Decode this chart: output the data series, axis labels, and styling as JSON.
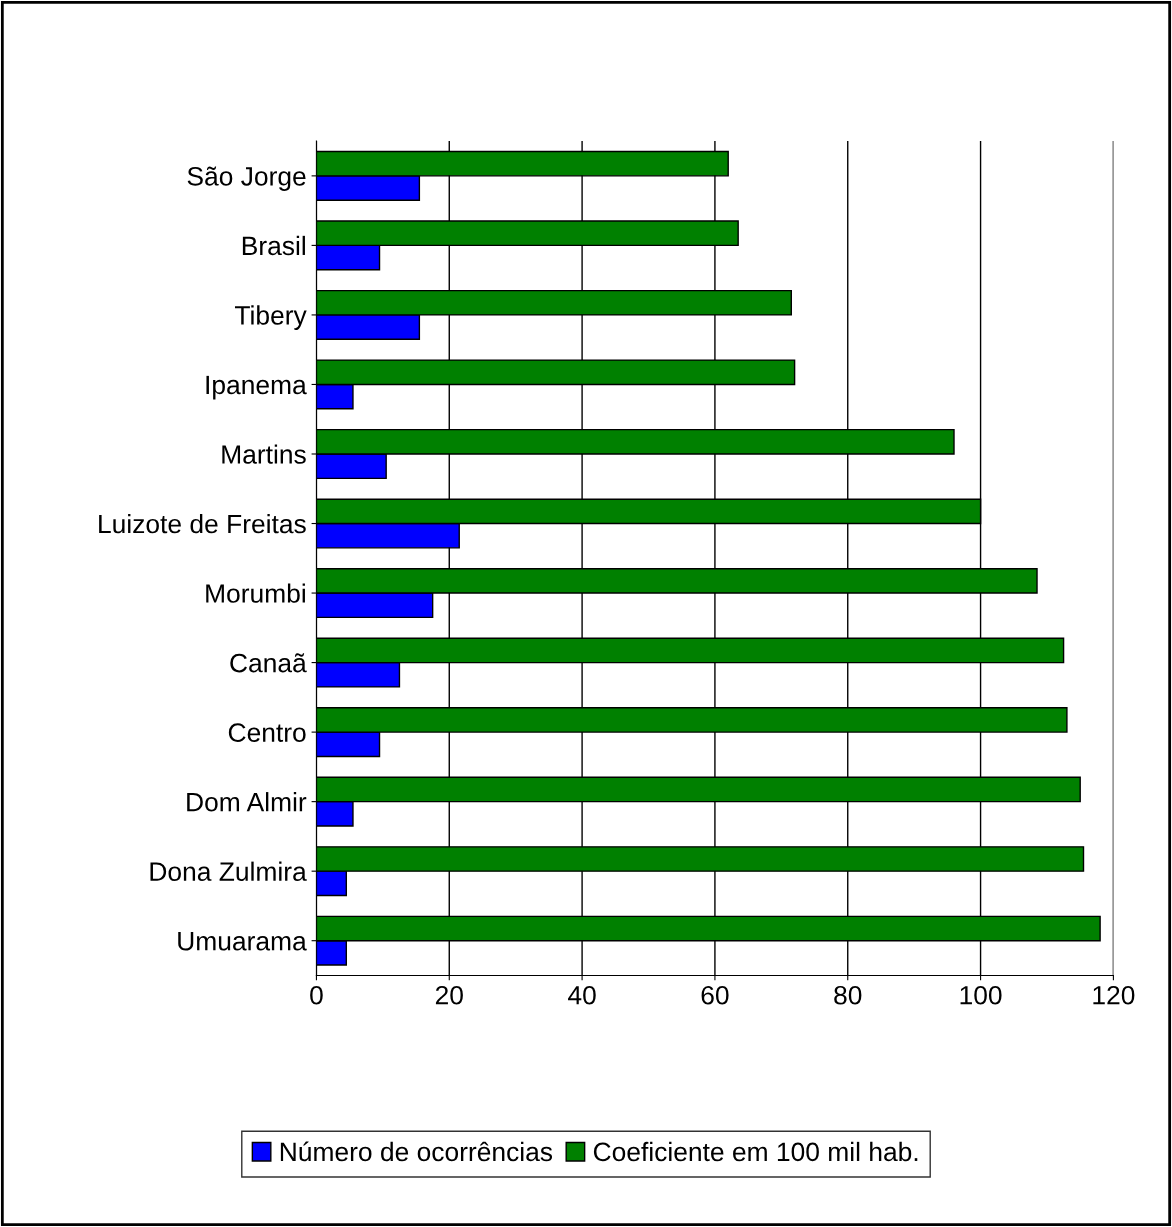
{
  "chart_data": {
    "type": "bar",
    "orientation": "horizontal",
    "categories": [
      "São Jorge",
      "Brasil",
      "Tibery",
      "Ipanema",
      "Martins",
      "Luizote de Freitas",
      "Morumbi",
      "Canaã",
      "Centro",
      "Dom Almir",
      "Dona Zulmira",
      "Umuarama"
    ],
    "series": [
      {
        "name": "Número de ocorrências",
        "color": "#0000ff",
        "values": [
          15.5,
          9.5,
          15.5,
          5.5,
          10.5,
          21.5,
          17.5,
          12.5,
          9.5,
          5.5,
          4.5,
          4.5
        ]
      },
      {
        "name": "Coeficiente em 100 mil hab.",
        "color": "#008000",
        "values": [
          62,
          63.5,
          71.5,
          72,
          96,
          100,
          108.5,
          112.5,
          113,
          115,
          115.5,
          118
        ]
      }
    ],
    "xlim": [
      0,
      120
    ],
    "xticks": [
      0,
      20,
      40,
      60,
      80,
      100,
      120
    ],
    "grid": "x",
    "legend": "bottom"
  }
}
